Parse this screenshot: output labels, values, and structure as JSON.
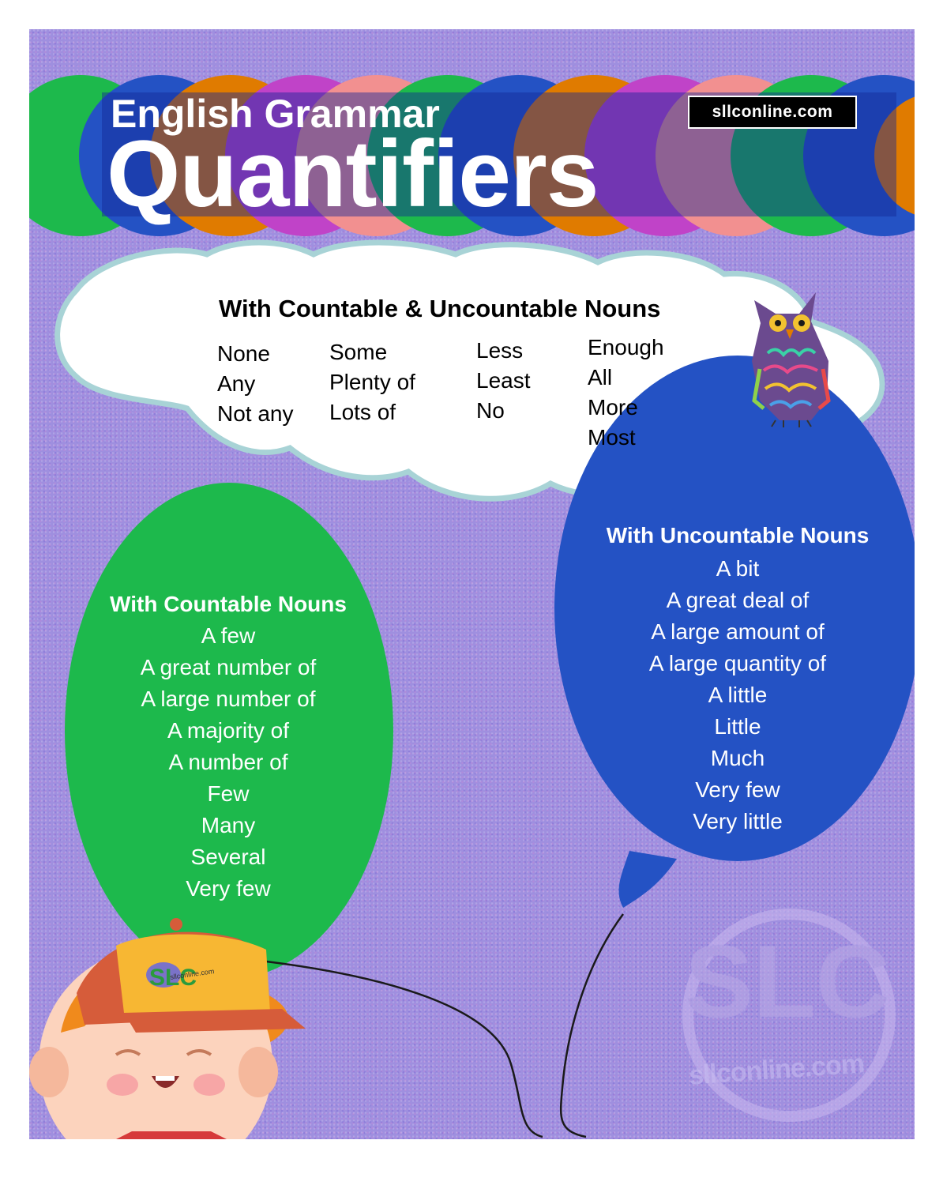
{
  "header": {
    "subtitle": "English Grammar",
    "title": "Quantifiers",
    "site_badge": "sllconline.com"
  },
  "both_nouns": {
    "heading": "With Countable & Uncountable Nouns",
    "columns": [
      [
        "None",
        "Any",
        "Not any"
      ],
      [
        "Some",
        "Plenty of",
        "Lots of"
      ],
      [
        "Less",
        "Least",
        "No"
      ],
      [
        "Enough",
        "All",
        "More",
        "Most"
      ]
    ]
  },
  "countable": {
    "heading": "With Countable Nouns",
    "items": [
      "A few",
      "A great number of",
      "A large number of",
      "A majority of",
      "A number of",
      "Few",
      "Many",
      "Several",
      "Very few"
    ]
  },
  "uncountable": {
    "heading": "With Uncountable Nouns",
    "items": [
      "A bit",
      "A great deal of",
      "A large amount of",
      "A large quantity of",
      "A little",
      "Little",
      "Much",
      "Very few",
      "Very little"
    ]
  },
  "decor": {
    "cap_logo": "SLC",
    "cap_site": "sllconline.com",
    "watermark_logo": "SLC",
    "watermark_site": "sllconline.com",
    "icons": [
      "owl-illustration",
      "boy-with-cap-illustration",
      "balloon-strings"
    ]
  },
  "colors": {
    "background": "#9f8fdf",
    "green_balloon": "#1db94c",
    "blue_balloon": "#2452c4",
    "cloud_outline": "#a8d3d6",
    "title_text": "#ffffff"
  }
}
